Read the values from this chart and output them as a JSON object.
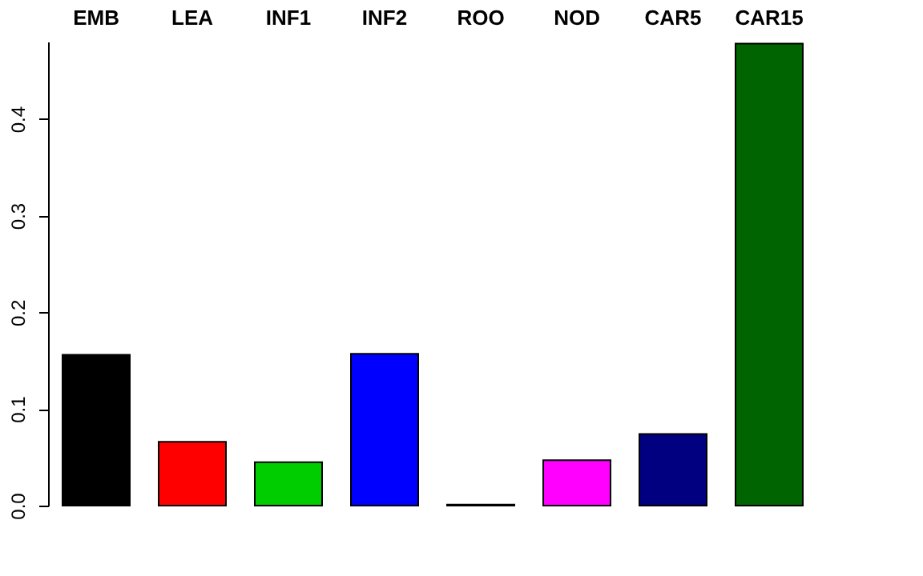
{
  "chart_data": {
    "type": "bar",
    "categories": [
      "EMB",
      "LEA",
      "INF1",
      "INF2",
      "ROO",
      "NOD",
      "CAR5",
      "CAR15"
    ],
    "values": [
      0.156,
      0.066,
      0.045,
      0.157,
      0.001,
      0.047,
      0.074,
      0.478
    ],
    "colors": [
      "#000000",
      "#ff0000",
      "#00cd00",
      "#0000ff",
      "#bebebe",
      "#ff00ff",
      "#000080",
      "#006400"
    ],
    "ylim": [
      0,
      0.48
    ],
    "yticks": [
      {
        "value": 0,
        "label": "0.0"
      },
      0.1,
      0.2,
      0.3,
      0.4
    ],
    "grid": false
  }
}
